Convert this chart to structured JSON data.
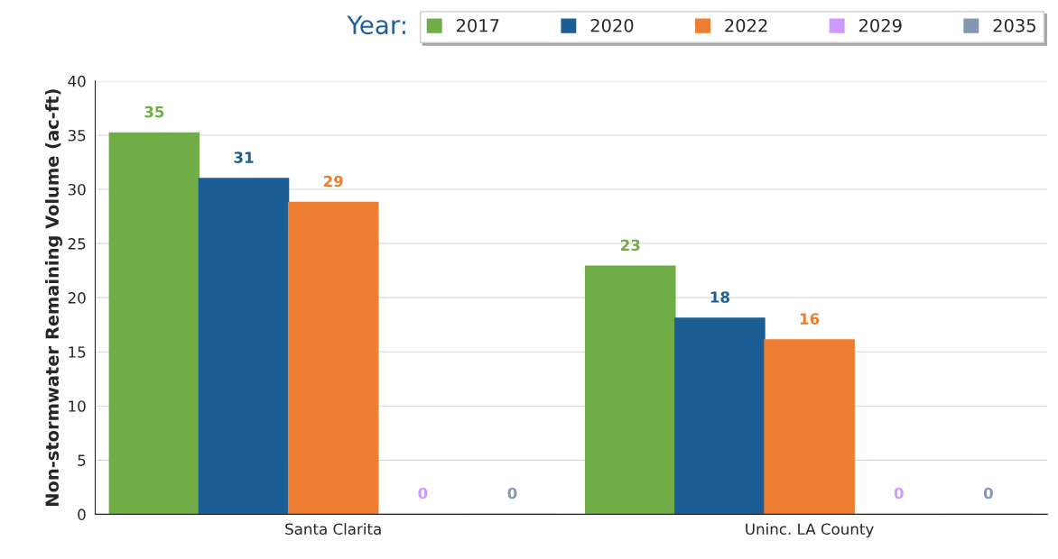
{
  "chart_data": {
    "type": "bar",
    "ylabel": "Non-stormwater Remaining Volume (ac-ft)",
    "legend_title": "Year:",
    "legend": "top",
    "categories": [
      "Santa Clarita",
      "Uninc. LA County"
    ],
    "series": [
      {
        "name": "2017",
        "color": "#70ad47",
        "values": [
          35.2,
          22.9
        ],
        "value_labels": [
          "35",
          "23"
        ]
      },
      {
        "name": "2020",
        "color": "#1b5e96",
        "values": [
          31.0,
          18.1
        ],
        "value_labels": [
          "31",
          "18"
        ]
      },
      {
        "name": "2022",
        "color": "#ed7d31",
        "values": [
          28.8,
          16.1
        ],
        "value_labels": [
          "29",
          "16"
        ]
      },
      {
        "name": "2029",
        "color": "#cc99ff",
        "values": [
          0,
          0
        ],
        "value_labels": [
          "0",
          "0"
        ]
      },
      {
        "name": "2035",
        "color": "#8497b0",
        "values": [
          0,
          0
        ],
        "value_labels": [
          "0",
          "0"
        ]
      }
    ],
    "ylim": [
      0,
      40
    ],
    "yticks": [
      0,
      5,
      10,
      15,
      20,
      25,
      30,
      35,
      40
    ],
    "grid": "y"
  }
}
